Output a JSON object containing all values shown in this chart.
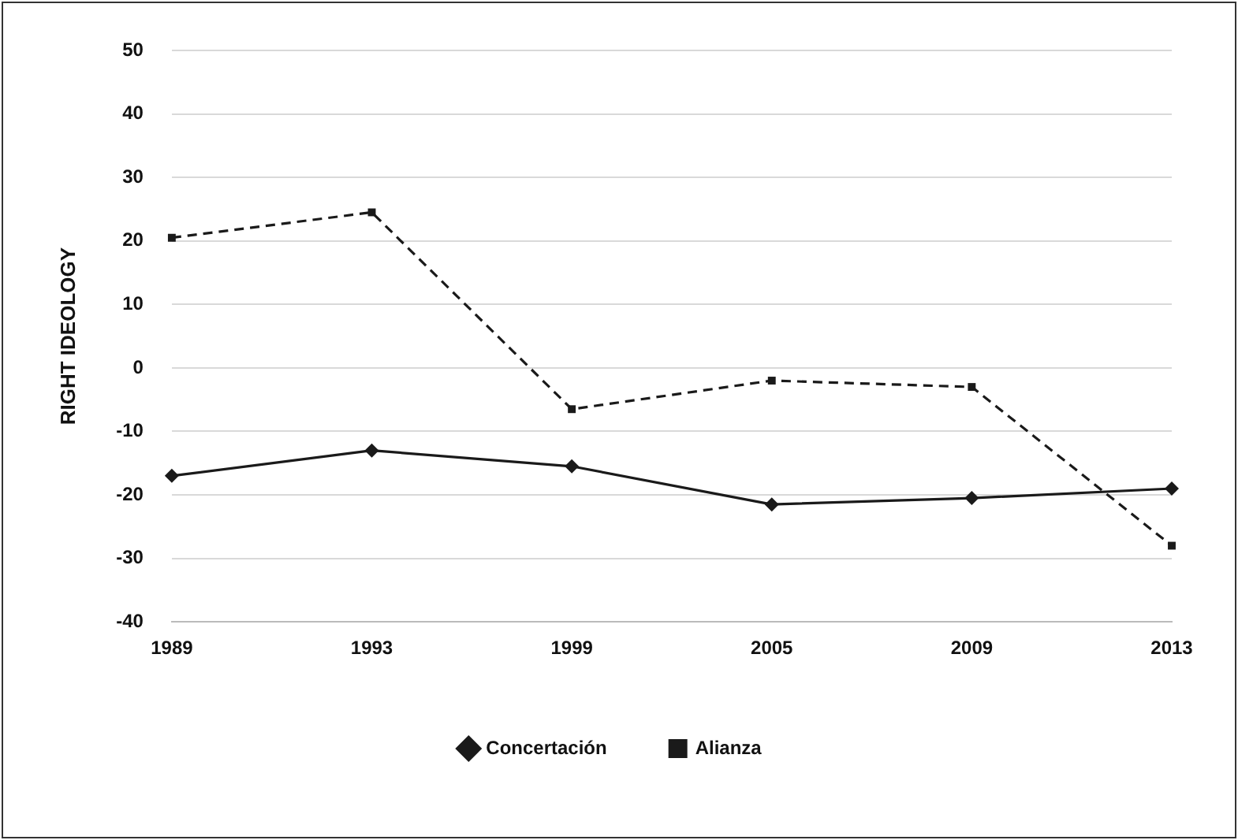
{
  "chart_data": {
    "type": "line",
    "ylabel": "RIGHT IDEOLOGY",
    "categories": [
      "1989",
      "1993",
      "1999",
      "2005",
      "2009",
      "2013"
    ],
    "series": [
      {
        "name": "Concertación",
        "color": "#1a1a1a",
        "values": [
          -17,
          -13,
          -15.5,
          -21.5,
          -20.5,
          -19
        ],
        "marker": "diamond",
        "line_style": "solid"
      },
      {
        "name": "Alianza",
        "color": "#1a1a1a",
        "values": [
          20.5,
          24.5,
          -6.5,
          -2,
          -3,
          -28
        ],
        "marker": "square",
        "line_style": "dashed"
      }
    ],
    "ylim": [
      -40,
      50
    ],
    "yticks": [
      -40,
      -30,
      -20,
      -10,
      0,
      10,
      20,
      30,
      40,
      50
    ],
    "grid": "y",
    "legend": "bottom"
  }
}
